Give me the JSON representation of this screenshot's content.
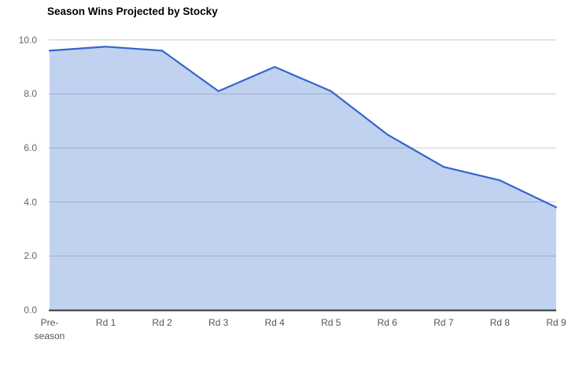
{
  "title": "Season Wins Projected by Stocky",
  "colors": {
    "line": "#3366cc",
    "fill": "rgba(51,102,204,0.3)",
    "gridline": "#cccccc",
    "baseline": "#333333",
    "y_label": "#666666",
    "x_label": "#555555",
    "title": "#000000",
    "background": "#ffffff"
  },
  "chart_data": {
    "type": "area",
    "title": "Season Wins Projected by Stocky",
    "categories": [
      "Pre-season",
      "Rd 1",
      "Rd 2",
      "Rd 3",
      "Rd 4",
      "Rd 5",
      "Rd 6",
      "Rd 7",
      "Rd 8",
      "Rd 9"
    ],
    "series": [
      {
        "name": "Season wins projected",
        "values": [
          9.6,
          9.75,
          9.6,
          8.1,
          9.0,
          8.1,
          6.5,
          5.3,
          4.8,
          3.8
        ]
      }
    ],
    "xlabel": "",
    "ylabel": "",
    "ylim": [
      0,
      10
    ],
    "y_ticks": [
      0,
      2,
      4,
      6,
      8,
      10
    ],
    "y_tick_labels": [
      "0.0",
      "2.0",
      "4.0",
      "6.0",
      "8.0",
      "10.0"
    ],
    "grid": true,
    "legend": "none"
  }
}
